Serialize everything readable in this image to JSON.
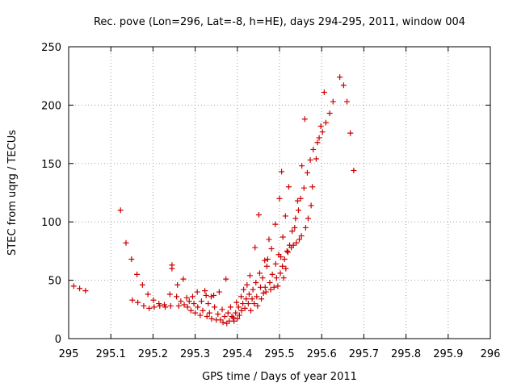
{
  "chart_data": {
    "type": "scatter",
    "title": "Rec. pove (Lon=296, Lat=-8, h=HE), days 294-295, 2011, window 004",
    "xlabel": "GPS time / Days of year 2011",
    "ylabel": "STEC from uqrg / TECUs",
    "xlim": [
      295,
      296
    ],
    "ylim": [
      0,
      250
    ],
    "xticks": [
      "295",
      "295.1",
      "295.2",
      "295.3",
      "295.4",
      "295.5",
      "295.6",
      "295.7",
      "295.8",
      "295.9",
      "296"
    ],
    "yticks": [
      "0",
      "50",
      "100",
      "150",
      "200",
      "250"
    ],
    "grid": true,
    "marker": "+",
    "color": "#cc0000",
    "points": [
      [
        295.012,
        45
      ],
      [
        295.026,
        43
      ],
      [
        295.04,
        41
      ],
      [
        295.123,
        110
      ],
      [
        295.136,
        82
      ],
      [
        295.149,
        68
      ],
      [
        295.151,
        33
      ],
      [
        295.162,
        55
      ],
      [
        295.164,
        31
      ],
      [
        295.175,
        46
      ],
      [
        295.178,
        28
      ],
      [
        295.188,
        38
      ],
      [
        295.191,
        26
      ],
      [
        295.201,
        33
      ],
      [
        295.203,
        27
      ],
      [
        295.214,
        30
      ],
      [
        295.216,
        28
      ],
      [
        295.227,
        29
      ],
      [
        295.229,
        27
      ],
      [
        295.24,
        38
      ],
      [
        295.242,
        28
      ],
      [
        295.245,
        63
      ],
      [
        295.245,
        60
      ],
      [
        295.256,
        36
      ],
      [
        295.258,
        46
      ],
      [
        295.261,
        28
      ],
      [
        295.266,
        32
      ],
      [
        295.272,
        51
      ],
      [
        295.274,
        29
      ],
      [
        295.28,
        35
      ],
      [
        295.282,
        27
      ],
      [
        295.286,
        32
      ],
      [
        295.29,
        24
      ],
      [
        295.294,
        36
      ],
      [
        295.297,
        30
      ],
      [
        295.3,
        22
      ],
      [
        295.305,
        40
      ],
      [
        295.306,
        27
      ],
      [
        295.312,
        20
      ],
      [
        295.315,
        32
      ],
      [
        295.318,
        24
      ],
      [
        295.323,
        41
      ],
      [
        295.326,
        37
      ],
      [
        295.328,
        19
      ],
      [
        295.331,
        30
      ],
      [
        295.334,
        22
      ],
      [
        295.338,
        36
      ],
      [
        295.339,
        17
      ],
      [
        295.344,
        37
      ],
      [
        295.346,
        27
      ],
      [
        295.35,
        16
      ],
      [
        295.354,
        21
      ],
      [
        295.357,
        40
      ],
      [
        295.36,
        16
      ],
      [
        295.364,
        25
      ],
      [
        295.366,
        14
      ],
      [
        295.37,
        19
      ],
      [
        295.373,
        51
      ],
      [
        295.375,
        13
      ],
      [
        295.378,
        22
      ],
      [
        295.381,
        15
      ],
      [
        295.384,
        27
      ],
      [
        295.387,
        19
      ],
      [
        295.39,
        18
      ],
      [
        295.392,
        15
      ],
      [
        295.396,
        22
      ],
      [
        295.398,
        31
      ],
      [
        295.4,
        17
      ],
      [
        295.403,
        27
      ],
      [
        295.405,
        20
      ],
      [
        295.409,
        36
      ],
      [
        295.41,
        24
      ],
      [
        295.413,
        30
      ],
      [
        295.415,
        42
      ],
      [
        295.418,
        26
      ],
      [
        295.421,
        34
      ],
      [
        295.423,
        46
      ],
      [
        295.426,
        30
      ],
      [
        295.428,
        38
      ],
      [
        295.43,
        54
      ],
      [
        295.432,
        24
      ],
      [
        295.435,
        34
      ],
      [
        295.437,
        42
      ],
      [
        295.44,
        30
      ],
      [
        295.442,
        78
      ],
      [
        295.444,
        48
      ],
      [
        295.446,
        36
      ],
      [
        295.448,
        28
      ],
      [
        295.451,
        106
      ],
      [
        295.453,
        56
      ],
      [
        295.455,
        44
      ],
      [
        295.457,
        34
      ],
      [
        295.46,
        52
      ],
      [
        295.462,
        39
      ],
      [
        295.465,
        67
      ],
      [
        295.466,
        44
      ],
      [
        295.468,
        40
      ],
      [
        295.47,
        62
      ],
      [
        295.472,
        68
      ],
      [
        295.475,
        85
      ],
      [
        295.477,
        48
      ],
      [
        295.479,
        42
      ],
      [
        295.481,
        77
      ],
      [
        295.483,
        55
      ],
      [
        295.487,
        44
      ],
      [
        295.49,
        98
      ],
      [
        295.491,
        64
      ],
      [
        295.493,
        52
      ],
      [
        295.496,
        45
      ],
      [
        295.498,
        72
      ],
      [
        295.5,
        120
      ],
      [
        295.502,
        56
      ],
      [
        295.503,
        70
      ],
      [
        295.505,
        143
      ],
      [
        295.507,
        62
      ],
      [
        295.508,
        87
      ],
      [
        295.51,
        52
      ],
      [
        295.512,
        68
      ],
      [
        295.514,
        105
      ],
      [
        295.515,
        60
      ],
      [
        295.518,
        75
      ],
      [
        295.52,
        74
      ],
      [
        295.522,
        130
      ],
      [
        295.524,
        80
      ],
      [
        295.528,
        78
      ],
      [
        295.53,
        92
      ],
      [
        295.533,
        80
      ],
      [
        295.536,
        95
      ],
      [
        295.538,
        103
      ],
      [
        295.54,
        82
      ],
      [
        295.543,
        118
      ],
      [
        295.545,
        110
      ],
      [
        295.547,
        85
      ],
      [
        295.55,
        120
      ],
      [
        295.552,
        88
      ],
      [
        295.553,
        148
      ],
      [
        295.558,
        129
      ],
      [
        295.56,
        188
      ],
      [
        295.562,
        95
      ],
      [
        295.566,
        142
      ],
      [
        295.568,
        103
      ],
      [
        295.573,
        153
      ],
      [
        295.575,
        114
      ],
      [
        295.578,
        130
      ],
      [
        295.58,
        162
      ],
      [
        295.587,
        154
      ],
      [
        295.59,
        168
      ],
      [
        295.594,
        172
      ],
      [
        295.598,
        182
      ],
      [
        295.602,
        177
      ],
      [
        295.606,
        211
      ],
      [
        295.61,
        185
      ],
      [
        295.619,
        193
      ],
      [
        295.627,
        203
      ],
      [
        295.643,
        224
      ],
      [
        295.652,
        217
      ],
      [
        295.66,
        203
      ],
      [
        295.668,
        176
      ],
      [
        295.676,
        144
      ]
    ]
  }
}
